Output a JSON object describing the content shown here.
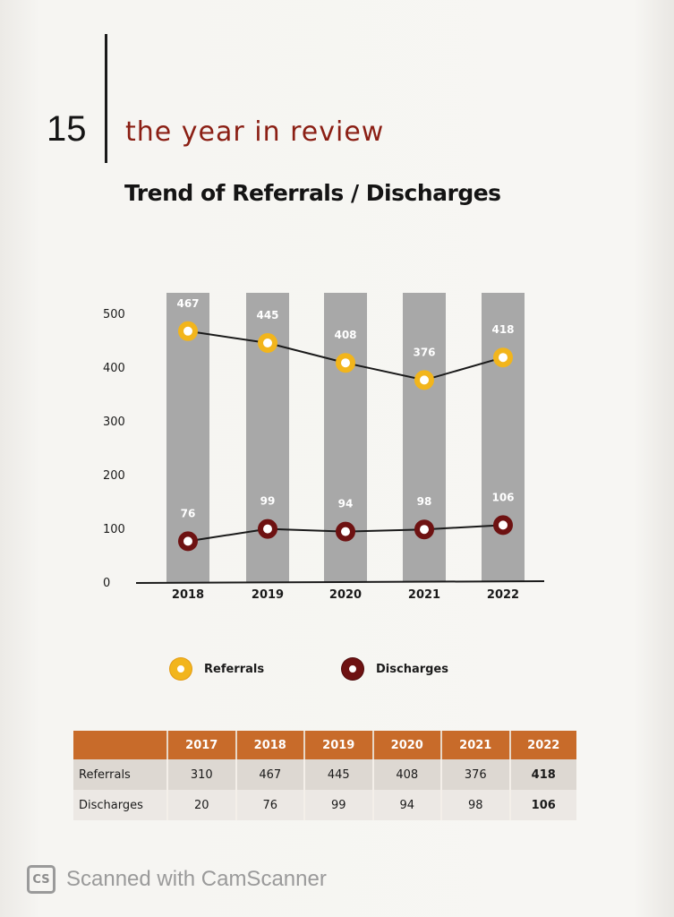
{
  "page": {
    "number": "15",
    "section_title": "the year in review"
  },
  "chart_data": {
    "type": "line",
    "title": "Trend of Referrals / Discharges",
    "categories": [
      "2018",
      "2019",
      "2020",
      "2021",
      "2022"
    ],
    "series": [
      {
        "name": "Referrals",
        "values": [
          467,
          445,
          408,
          376,
          418
        ],
        "color": "#f2b51c"
      },
      {
        "name": "Discharges",
        "values": [
          76,
          99,
          94,
          98,
          106
        ],
        "color": "#6e1212"
      }
    ],
    "ylim": [
      0,
      500
    ],
    "yticks": [
      0,
      100,
      200,
      300,
      400,
      500
    ],
    "legend": "bottom",
    "grid": false,
    "bar_color": "#a8a8a8"
  },
  "table": {
    "headers": [
      "",
      "2017",
      "2018",
      "2019",
      "2020",
      "2021",
      "2022"
    ],
    "rows": [
      {
        "label": "Referrals",
        "values": [
          "310",
          "467",
          "445",
          "408",
          "376",
          "418"
        ]
      },
      {
        "label": "Discharges",
        "values": [
          "20",
          "76",
          "99",
          "94",
          "98",
          "106"
        ]
      }
    ],
    "header_color": "#c86b2a"
  },
  "footer": {
    "logo": "CS",
    "text": "Scanned with CamScanner"
  }
}
